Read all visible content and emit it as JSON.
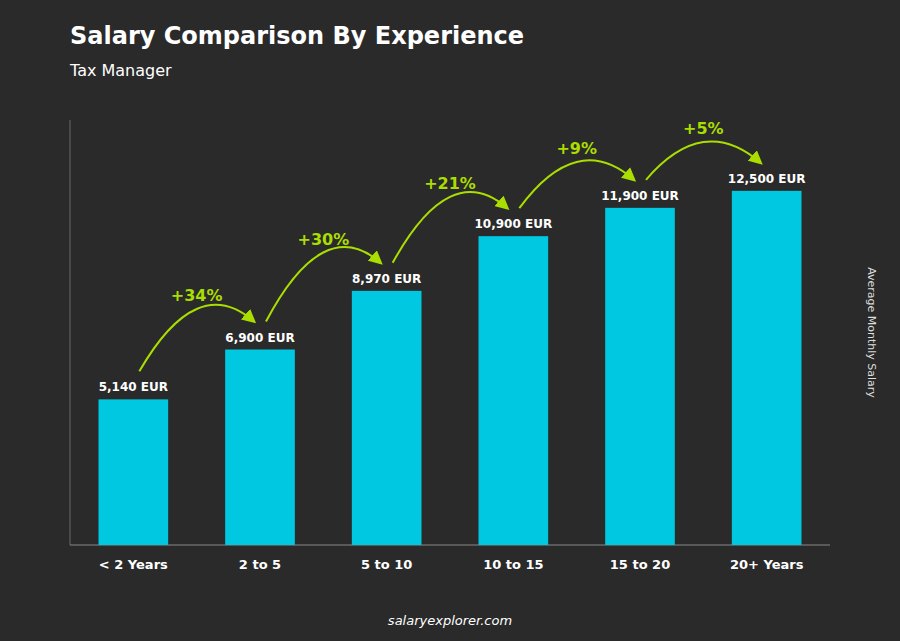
{
  "chart_data": {
    "type": "bar",
    "title": "Salary Comparison By Experience",
    "subtitle": "Tax Manager",
    "ylabel": "Average Monthly Salary",
    "footer": "salaryexplorer.com",
    "categories": [
      "< 2 Years",
      "2 to 5",
      "5 to 10",
      "10 to 15",
      "15 to 20",
      "20+ Years"
    ],
    "values": [
      5140,
      6900,
      8970,
      10900,
      11900,
      12500
    ],
    "value_labels": [
      "5,140 EUR",
      "6,900 EUR",
      "8,970 EUR",
      "10,900 EUR",
      "11,900 EUR",
      "12,500 EUR"
    ],
    "data_labels": true,
    "annotations": [
      "+34%",
      "+30%",
      "+21%",
      "+9%",
      "+5%"
    ],
    "color": "#00c8e0",
    "ylim": [
      0,
      15000
    ],
    "yticks": [],
    "tick_labels": "x",
    "grid": false
  }
}
